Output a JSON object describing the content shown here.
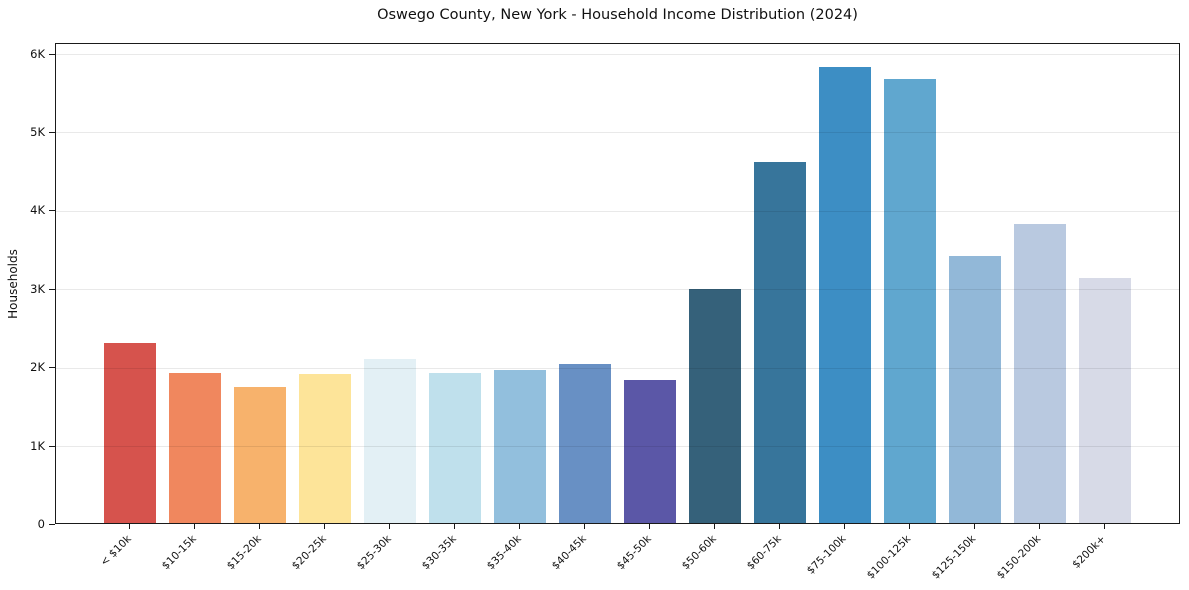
{
  "chart_data": {
    "type": "bar",
    "title": "Oswego County, New York - Household Income Distribution (2024)",
    "xlabel": "",
    "ylabel": "Households",
    "categories": [
      "< $10k",
      "$10-15k",
      "$15-20k",
      "$20-25k",
      "$25-30k",
      "$30-35k",
      "$35-40k",
      "$40-45k",
      "$45-50k",
      "$50-60k",
      "$60-75k",
      "$75-100k",
      "$100-125k",
      "$125-150k",
      "$150-200k",
      "$200k+"
    ],
    "values": [
      2300,
      1910,
      1740,
      1900,
      2090,
      1910,
      1950,
      2030,
      1820,
      2980,
      4610,
      5820,
      5660,
      3400,
      3820,
      3130
    ],
    "bar_colors": [
      "#d6534d",
      "#f0875e",
      "#f7b26c",
      "#fde499",
      "#e3f0f5",
      "#bfe0ec",
      "#92bfdd",
      "#6890c4",
      "#5b57a7",
      "#35617a",
      "#37759b",
      "#3d8ec4",
      "#60a7cf",
      "#92b8d8",
      "#b9c9e0",
      "#d7dae7"
    ],
    "ytick_values": [
      0,
      1000,
      2000,
      3000,
      4000,
      5000,
      6000
    ],
    "ytick_labels": [
      "0",
      "1K",
      "2K",
      "3K",
      "4K",
      "5K",
      "6K"
    ],
    "ylim": [
      0,
      6135
    ],
    "grid": "horizontal",
    "legend": "none",
    "colors": {
      "background": "#ffffff",
      "axis": "#1a1a1a",
      "gridline": "#e8e8e8",
      "text": "#111111"
    }
  }
}
